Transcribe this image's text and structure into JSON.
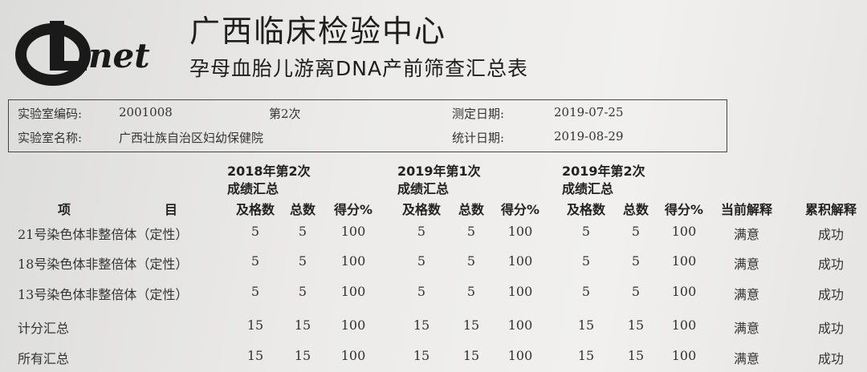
{
  "header": {
    "logo_text": "Linet",
    "title": "广西临床检验中心",
    "subtitle": "孕母血胎儿游离DNA产前筛查汇总表"
  },
  "info": {
    "lab_code_label": "实验室编码:",
    "lab_code": "2001008",
    "round": "第2次",
    "test_date_label": "测定日期:",
    "test_date": "2019-07-25",
    "lab_name_label": "实验室名称:",
    "lab_name": "广西壮族自治区妇幼保健院",
    "stat_date_label": "统计日期:",
    "stat_date": "2019-08-29"
  },
  "table": {
    "item_header": [
      "项",
      "目"
    ],
    "groups": [
      {
        "title": "2018年第2次",
        "sub": "成绩汇总"
      },
      {
        "title": "2019年第1次",
        "sub": "成绩汇总"
      },
      {
        "title": "2019年第2次",
        "sub": "成绩汇总"
      }
    ],
    "col_headers": [
      "及格数",
      "总数",
      "得分%",
      "及格数",
      "总数",
      "得分%",
      "及格数",
      "总数",
      "得分%",
      "当前解释",
      "累积解释"
    ],
    "rows": [
      {
        "item": "21号染色体非整倍体（定性）",
        "cells": [
          "5",
          "5",
          "100",
          "5",
          "5",
          "100",
          "5",
          "5",
          "100",
          "满意",
          "成功"
        ]
      },
      {
        "item": "18号染色体非整倍体（定性）",
        "cells": [
          "5",
          "5",
          "100",
          "5",
          "5",
          "100",
          "5",
          "5",
          "100",
          "满意",
          "成功"
        ]
      },
      {
        "item": "13号染色体非整倍体（定性）",
        "cells": [
          "5",
          "5",
          "100",
          "5",
          "5",
          "100",
          "5",
          "5",
          "100",
          "满意",
          "成功"
        ]
      },
      {
        "item": "计分汇总",
        "cells": [
          "15",
          "15",
          "100",
          "15",
          "15",
          "100",
          "15",
          "15",
          "100",
          "满意",
          "成功"
        ]
      },
      {
        "item": "所有汇总",
        "cells": [
          "15",
          "15",
          "100",
          "15",
          "15",
          "100",
          "15",
          "15",
          "100",
          "满意",
          "成功"
        ]
      }
    ]
  }
}
